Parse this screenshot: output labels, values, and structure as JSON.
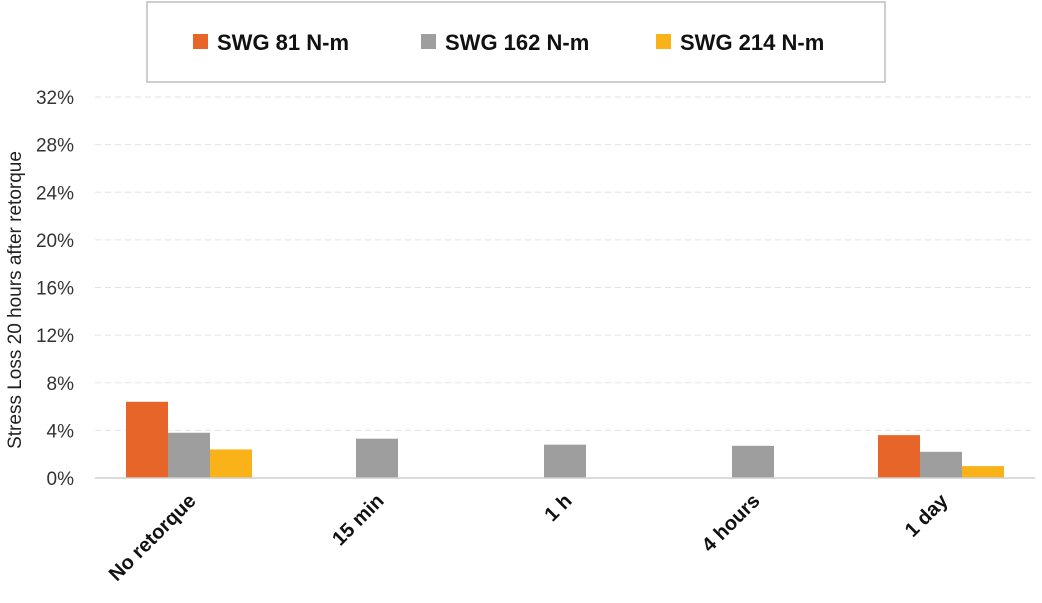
{
  "chart_data": {
    "type": "bar",
    "title": "",
    "xlabel": "",
    "ylabel": "Stress Loss 20 hours after retorque",
    "categories": [
      "No retorque",
      "15 min",
      "1 h",
      "4 hours",
      "1 day"
    ],
    "series": [
      {
        "name": "SWG 81 N-m",
        "color": "#E8652A",
        "values": [
          6.4,
          null,
          null,
          null,
          3.6
        ]
      },
      {
        "name": "SWG 162 N-m",
        "color": "#9E9E9E",
        "values": [
          3.8,
          3.3,
          2.8,
          2.7,
          2.2
        ]
      },
      {
        "name": "SWG 214 N-m",
        "color": "#F9B218",
        "values": [
          2.4,
          null,
          null,
          null,
          1.0
        ]
      }
    ],
    "ylim": [
      0,
      32
    ],
    "yticks": [
      "0%",
      "4%",
      "8%",
      "12%",
      "16%",
      "20%",
      "24%",
      "28%",
      "32%"
    ],
    "ytick_values": [
      0,
      4,
      8,
      12,
      16,
      20,
      24,
      28,
      32
    ],
    "grid": true,
    "legend_position": "top"
  }
}
